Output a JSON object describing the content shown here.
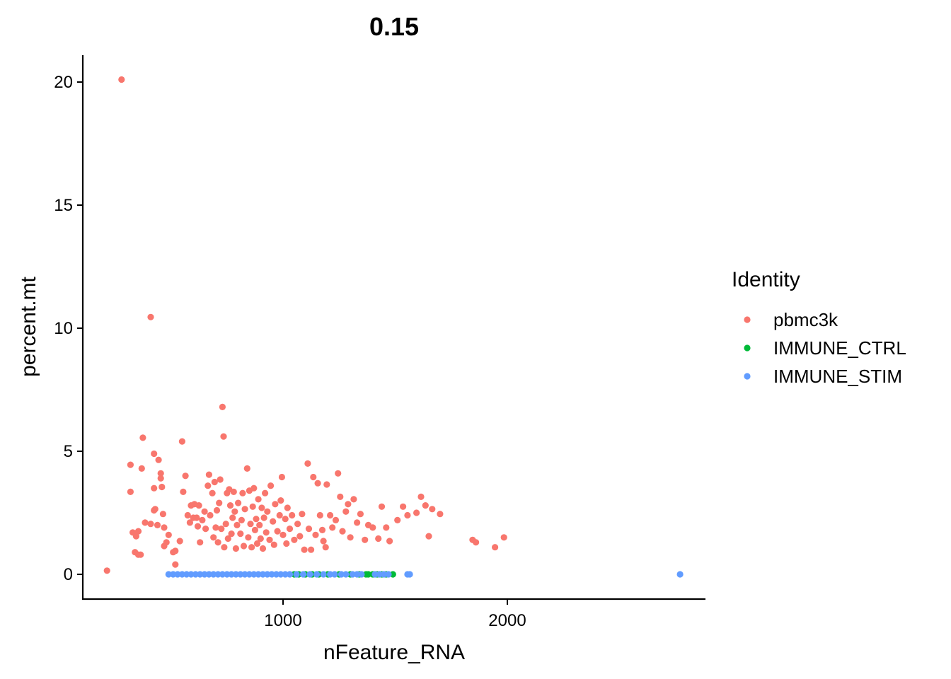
{
  "chart_data": {
    "type": "scatter",
    "title": "0.15",
    "xlabel": "nFeature_RNA",
    "ylabel": "percent.mt",
    "xlim": [
      100,
      2940
    ],
    "ylim": [
      -1,
      21
    ],
    "x_ticks": [
      1000,
      2000
    ],
    "y_ticks": [
      0,
      5,
      10,
      15,
      20
    ],
    "grid": false,
    "legend": {
      "title": "Identity",
      "placement": "right",
      "entries": [
        "pbmc3k",
        "IMMUNE_CTRL",
        "IMMUNE_STIM"
      ]
    },
    "series": [
      {
        "name": "pbmc3k",
        "color": "#F8766D",
        "points": [
          [
            215,
            0.15
          ],
          [
            280,
            20.1
          ],
          [
            410,
            10.45
          ],
          [
            320,
            4.45
          ],
          [
            375,
            5.55
          ],
          [
            425,
            4.9
          ],
          [
            445,
            4.65
          ],
          [
            455,
            4.1
          ],
          [
            370,
            4.3
          ],
          [
            320,
            3.35
          ],
          [
            455,
            3.9
          ],
          [
            425,
            3.5
          ],
          [
            460,
            3.55
          ],
          [
            330,
            1.7
          ],
          [
            345,
            1.55
          ],
          [
            355,
            1.75
          ],
          [
            385,
            2.1
          ],
          [
            410,
            2.05
          ],
          [
            425,
            2.6
          ],
          [
            430,
            2.65
          ],
          [
            465,
            2.45
          ],
          [
            440,
            2.0
          ],
          [
            470,
            1.9
          ],
          [
            340,
            0.9
          ],
          [
            355,
            0.8
          ],
          [
            365,
            0.8
          ],
          [
            470,
            1.15
          ],
          [
            480,
            1.3
          ],
          [
            490,
            1.6
          ],
          [
            510,
            0.9
          ],
          [
            520,
            0.95
          ],
          [
            520,
            0.4
          ],
          [
            540,
            1.35
          ],
          [
            550,
            5.4
          ],
          [
            555,
            3.35
          ],
          [
            565,
            4.0
          ],
          [
            575,
            2.4
          ],
          [
            585,
            2.1
          ],
          [
            590,
            2.8
          ],
          [
            600,
            2.3
          ],
          [
            605,
            2.85
          ],
          [
            615,
            2.3
          ],
          [
            620,
            1.95
          ],
          [
            625,
            2.8
          ],
          [
            630,
            1.3
          ],
          [
            640,
            2.2
          ],
          [
            650,
            2.55
          ],
          [
            655,
            1.85
          ],
          [
            665,
            3.6
          ],
          [
            670,
            4.05
          ],
          [
            675,
            2.4
          ],
          [
            685,
            3.3
          ],
          [
            690,
            1.5
          ],
          [
            695,
            3.75
          ],
          [
            700,
            1.9
          ],
          [
            705,
            2.6
          ],
          [
            710,
            1.3
          ],
          [
            715,
            2.9
          ],
          [
            720,
            3.85
          ],
          [
            725,
            1.85
          ],
          [
            730,
            6.8
          ],
          [
            735,
            5.6
          ],
          [
            738,
            1.1
          ],
          [
            745,
            2.05
          ],
          [
            750,
            3.3
          ],
          [
            755,
            1.45
          ],
          [
            760,
            3.45
          ],
          [
            765,
            2.8
          ],
          [
            770,
            1.65
          ],
          [
            775,
            2.3
          ],
          [
            780,
            3.35
          ],
          [
            785,
            2.55
          ],
          [
            790,
            1.05
          ],
          [
            795,
            2.0
          ],
          [
            800,
            2.9
          ],
          [
            810,
            1.65
          ],
          [
            815,
            2.2
          ],
          [
            820,
            3.3
          ],
          [
            825,
            1.15
          ],
          [
            830,
            2.65
          ],
          [
            840,
            4.3
          ],
          [
            845,
            1.5
          ],
          [
            850,
            3.4
          ],
          [
            855,
            2.05
          ],
          [
            860,
            1.1
          ],
          [
            865,
            2.75
          ],
          [
            870,
            3.5
          ],
          [
            875,
            1.8
          ],
          [
            880,
            2.25
          ],
          [
            885,
            1.25
          ],
          [
            890,
            3.05
          ],
          [
            895,
            2.0
          ],
          [
            900,
            1.45
          ],
          [
            905,
            2.7
          ],
          [
            910,
            1.05
          ],
          [
            915,
            2.3
          ],
          [
            920,
            3.3
          ],
          [
            925,
            1.7
          ],
          [
            930,
            2.55
          ],
          [
            940,
            1.4
          ],
          [
            945,
            3.6
          ],
          [
            955,
            2.15
          ],
          [
            960,
            1.2
          ],
          [
            965,
            2.85
          ],
          [
            975,
            1.75
          ],
          [
            985,
            2.4
          ],
          [
            990,
            3.0
          ],
          [
            995,
            3.95
          ],
          [
            1000,
            1.6
          ],
          [
            1010,
            2.25
          ],
          [
            1015,
            1.25
          ],
          [
            1020,
            2.7
          ],
          [
            1030,
            1.85
          ],
          [
            1040,
            2.4
          ],
          [
            1050,
            1.4
          ],
          [
            1065,
            2.05
          ],
          [
            1075,
            1.55
          ],
          [
            1085,
            2.45
          ],
          [
            1095,
            1.0
          ],
          [
            1110,
            4.5
          ],
          [
            1115,
            1.85
          ],
          [
            1125,
            1.0
          ],
          [
            1135,
            3.95
          ],
          [
            1145,
            1.6
          ],
          [
            1155,
            3.7
          ],
          [
            1165,
            2.4
          ],
          [
            1175,
            1.8
          ],
          [
            1180,
            1.35
          ],
          [
            1190,
            1.1
          ],
          [
            1195,
            3.65
          ],
          [
            1210,
            2.4
          ],
          [
            1220,
            1.9
          ],
          [
            1235,
            2.2
          ],
          [
            1245,
            4.1
          ],
          [
            1255,
            3.15
          ],
          [
            1265,
            1.75
          ],
          [
            1280,
            2.55
          ],
          [
            1290,
            2.85
          ],
          [
            1300,
            1.5
          ],
          [
            1315,
            3.05
          ],
          [
            1330,
            2.1
          ],
          [
            1345,
            2.45
          ],
          [
            1365,
            1.4
          ],
          [
            1380,
            2.0
          ],
          [
            1400,
            1.9
          ],
          [
            1425,
            1.45
          ],
          [
            1440,
            2.75
          ],
          [
            1460,
            1.9
          ],
          [
            1475,
            1.35
          ],
          [
            1510,
            2.2
          ],
          [
            1535,
            2.75
          ],
          [
            1555,
            2.4
          ],
          [
            1595,
            2.5
          ],
          [
            1615,
            3.15
          ],
          [
            1635,
            2.8
          ],
          [
            1665,
            2.65
          ],
          [
            1700,
            2.45
          ],
          [
            1650,
            1.55
          ],
          [
            1845,
            1.4
          ],
          [
            1860,
            1.3
          ],
          [
            1945,
            1.1
          ],
          [
            1985,
            1.5
          ]
        ]
      },
      {
        "name": "IMMUNE_CTRL",
        "color": "#00BA38",
        "points": [
          [
            1050,
            0
          ],
          [
            1070,
            0
          ],
          [
            1100,
            0
          ],
          [
            1130,
            0
          ],
          [
            1160,
            0
          ],
          [
            1200,
            0
          ],
          [
            1250,
            0
          ],
          [
            1300,
            0
          ],
          [
            1340,
            0
          ],
          [
            1370,
            0
          ],
          [
            1380,
            0
          ],
          [
            1400,
            0
          ],
          [
            1420,
            0
          ],
          [
            1440,
            0
          ],
          [
            1460,
            0
          ],
          [
            1490,
            0
          ]
        ]
      },
      {
        "name": "IMMUNE_STIM",
        "color": "#619CFF",
        "points": [
          [
            490,
            0
          ],
          [
            510,
            0
          ],
          [
            530,
            0
          ],
          [
            550,
            0
          ],
          [
            570,
            0
          ],
          [
            590,
            0
          ],
          [
            610,
            0
          ],
          [
            630,
            0
          ],
          [
            650,
            0
          ],
          [
            670,
            0
          ],
          [
            690,
            0
          ],
          [
            710,
            0
          ],
          [
            730,
            0
          ],
          [
            750,
            0
          ],
          [
            770,
            0
          ],
          [
            790,
            0
          ],
          [
            810,
            0
          ],
          [
            830,
            0
          ],
          [
            850,
            0
          ],
          [
            870,
            0
          ],
          [
            890,
            0
          ],
          [
            910,
            0
          ],
          [
            930,
            0
          ],
          [
            950,
            0
          ],
          [
            970,
            0
          ],
          [
            990,
            0
          ],
          [
            1010,
            0
          ],
          [
            1030,
            0
          ],
          [
            1060,
            0
          ],
          [
            1090,
            0
          ],
          [
            1120,
            0
          ],
          [
            1150,
            0
          ],
          [
            1180,
            0
          ],
          [
            1210,
            0
          ],
          [
            1230,
            0
          ],
          [
            1260,
            0
          ],
          [
            1280,
            0
          ],
          [
            1310,
            0
          ],
          [
            1330,
            0
          ],
          [
            1350,
            0
          ],
          [
            1410,
            0
          ],
          [
            1430,
            0
          ],
          [
            1450,
            0
          ],
          [
            1470,
            0
          ],
          [
            1555,
            0
          ],
          [
            1565,
            0
          ],
          [
            2770,
            0
          ]
        ]
      }
    ]
  }
}
